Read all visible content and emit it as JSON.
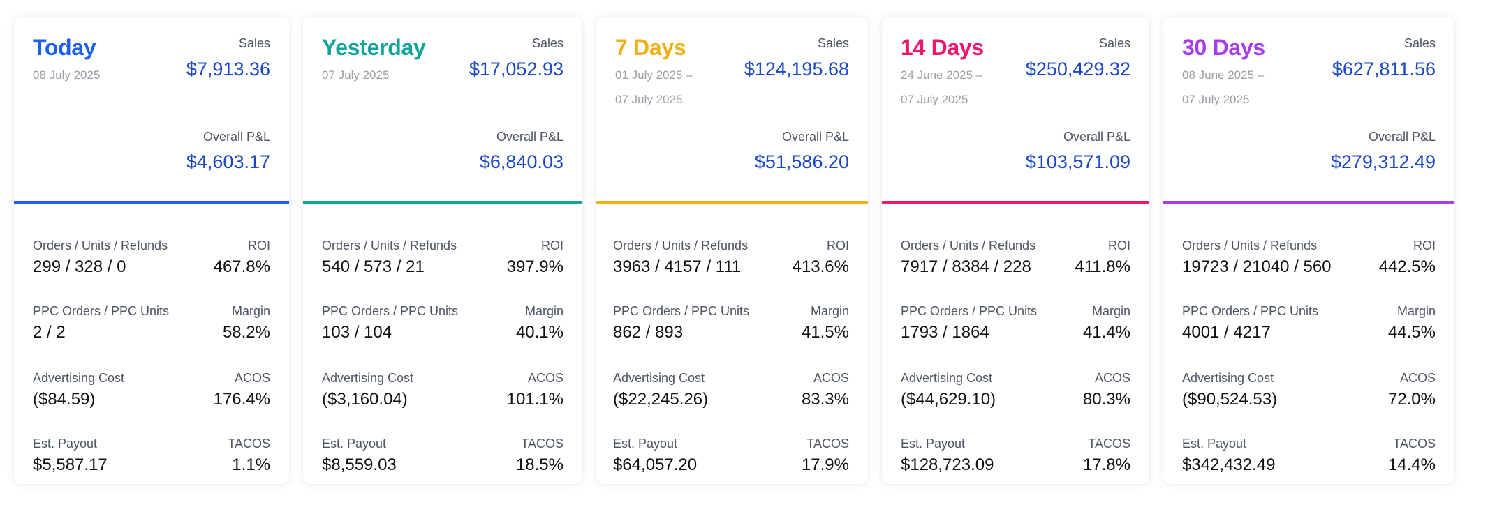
{
  "labels": {
    "sales": "Sales",
    "pl": "Overall P&L",
    "orders": "Orders / Units / Refunds",
    "roi": "ROI",
    "ppc": "PPC Orders / PPC Units",
    "margin": "Margin",
    "adcost": "Advertising Cost",
    "acos": "ACOS",
    "payout": "Est. Payout",
    "tacos": "TACOS"
  },
  "cards": [
    {
      "title": "Today",
      "color": "#1a5ff0",
      "date_line1": "08 July 2025",
      "date_line2": "",
      "sales": "$7,913.36",
      "pl": "$4,603.17",
      "orders": "299 / 328 / 0",
      "roi": "467.8%",
      "ppc": "2 / 2",
      "margin": "58.2%",
      "adcost": "($84.59)",
      "acos": "176.4%",
      "payout": "$5,587.17",
      "tacos": "1.1%"
    },
    {
      "title": "Yesterday",
      "color": "#12a39a",
      "date_line1": "07 July 2025",
      "date_line2": "",
      "sales": "$17,052.93",
      "pl": "$6,840.03",
      "orders": "540 / 573 / 21",
      "roi": "397.9%",
      "ppc": "103 / 104",
      "margin": "40.1%",
      "adcost": "($3,160.04)",
      "acos": "101.1%",
      "payout": "$8,559.03",
      "tacos": "18.5%"
    },
    {
      "title": "7 Days",
      "color": "#f0b01a",
      "date_line1": "01 July 2025 –",
      "date_line2": "07 July 2025",
      "sales": "$124,195.68",
      "pl": "$51,586.20",
      "orders": "3963 / 4157 / 111",
      "roi": "413.6%",
      "ppc": "862 / 893",
      "margin": "41.5%",
      "adcost": "($22,245.26)",
      "acos": "83.3%",
      "payout": "$64,057.20",
      "tacos": "17.9%"
    },
    {
      "title": "14 Days",
      "color": "#f0166e",
      "date_line1": "24 June 2025 –",
      "date_line2": "07 July 2025",
      "sales": "$250,429.32",
      "pl": "$103,571.09",
      "orders": "7917 / 8384 / 228",
      "roi": "411.8%",
      "ppc": "1793 / 1864",
      "margin": "41.4%",
      "adcost": "($44,629.10)",
      "acos": "80.3%",
      "payout": "$128,723.09",
      "tacos": "17.8%"
    },
    {
      "title": "30 Days",
      "color": "#a93ee8",
      "date_line1": "08 June 2025 –",
      "date_line2": "07 July 2025",
      "sales": "$627,811.56",
      "pl": "$279,312.49",
      "orders": "19723 / 21040 / 560",
      "roi": "442.5%",
      "ppc": "4001 / 4217",
      "margin": "44.5%",
      "adcost": "($90,524.53)",
      "acos": "72.0%",
      "payout": "$342,432.49",
      "tacos": "14.4%"
    }
  ]
}
